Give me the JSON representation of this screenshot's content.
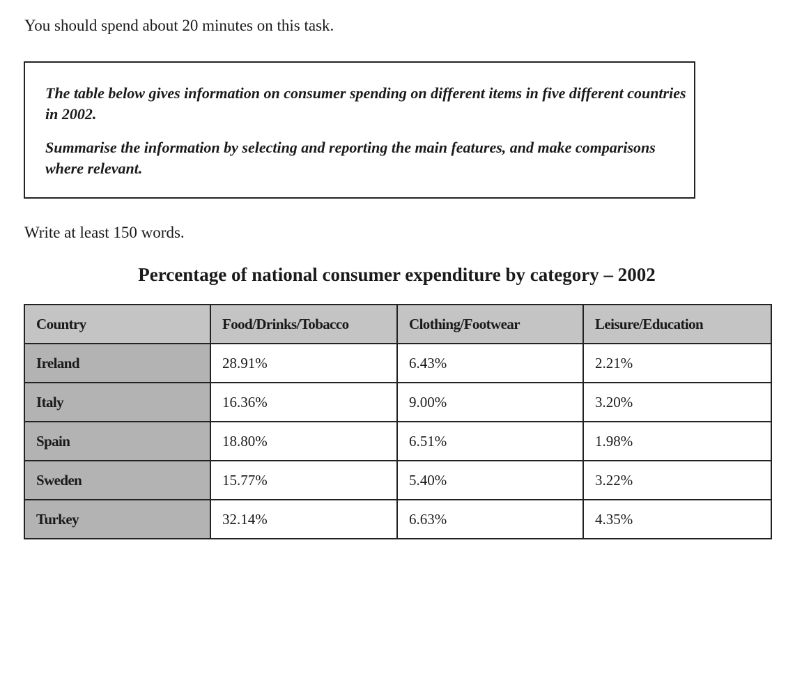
{
  "instruction": "You should spend about 20 minutes on this task.",
  "task_box": {
    "paragraph1": "The table below gives information on consumer spending on different items in five different countries in 2002.",
    "paragraph2": "Summarise the information by selecting and reporting the main features, and make comparisons where relevant."
  },
  "word_count": "Write at least 150 words.",
  "chart_data": {
    "type": "table",
    "title": "Percentage of national consumer expenditure by category – 2002",
    "columns": [
      "Country",
      "Food/Drinks/Tobacco",
      "Clothing/Footwear",
      "Leisure/Education"
    ],
    "rows": [
      [
        "Ireland",
        "28.91%",
        "6.43%",
        "2.21%"
      ],
      [
        "Italy",
        "16.36%",
        "9.00%",
        "3.20%"
      ],
      [
        "Spain",
        "18.80%",
        "6.51%",
        "1.98%"
      ],
      [
        "Sweden",
        "15.77%",
        "5.40%",
        "3.22%"
      ],
      [
        "Turkey",
        "32.14%",
        "6.63%",
        "4.35%"
      ]
    ]
  },
  "colors": {
    "header_bg": "#c4c4c4",
    "country_bg": "#b3b3b3",
    "border": "#222222"
  }
}
